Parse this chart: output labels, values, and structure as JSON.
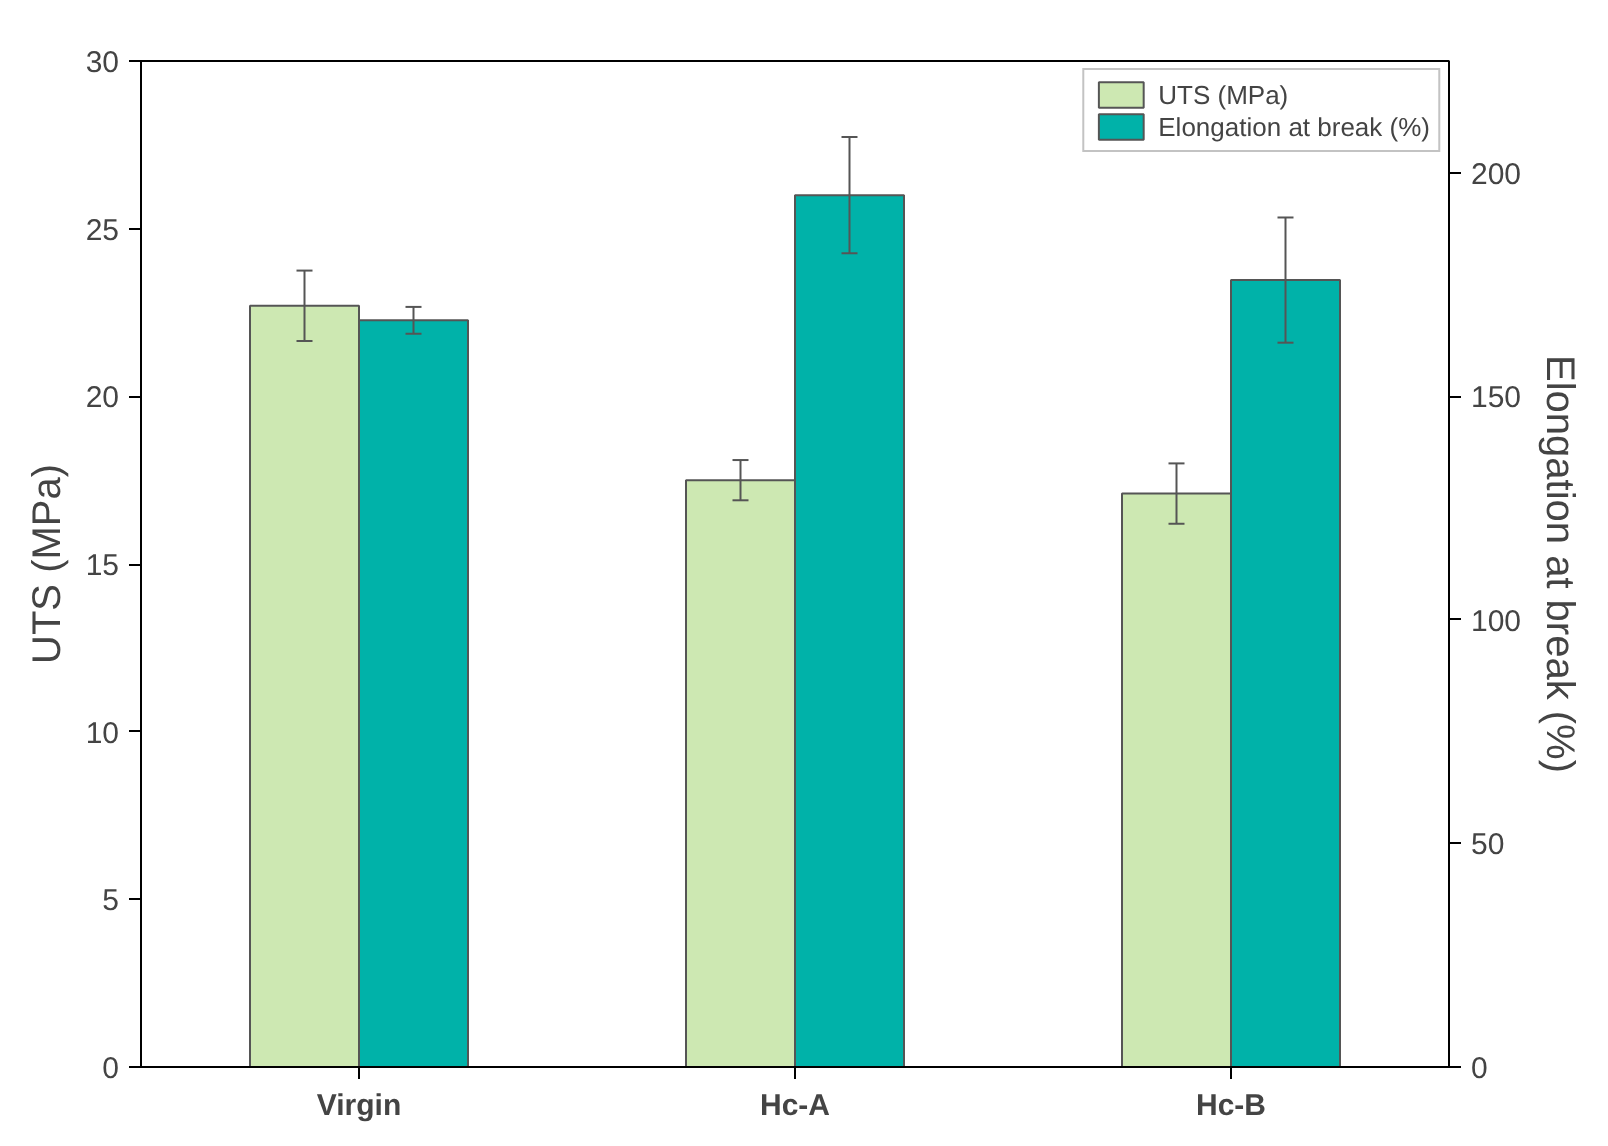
{
  "chart_data": {
    "type": "bar",
    "ylabel": "UTS (MPa)",
    "y2label": "Elongation at break (%)",
    "categories": [
      "Virgin",
      "Hc-A",
      "Hc-B"
    ],
    "series": [
      {
        "name": "UTS (MPa)",
        "color": "#cde8b2",
        "values": [
          22.7,
          17.5,
          17.1
        ],
        "errors": [
          1.05,
          0.6,
          0.9
        ]
      },
      {
        "name": "Elongation at break (%)",
        "color": "#00b2a9",
        "axis": "y2",
        "values": [
          167,
          195,
          176
        ],
        "errors": [
          3,
          13,
          14
        ]
      }
    ],
    "ylim": [
      0,
      30
    ],
    "yticks": [
      0,
      5,
      10,
      15,
      20,
      25,
      30
    ],
    "y2lim": [
      0,
      225
    ],
    "y2ticks": [
      0,
      50,
      100,
      150,
      200
    ],
    "grid": false,
    "legend": "top right"
  }
}
